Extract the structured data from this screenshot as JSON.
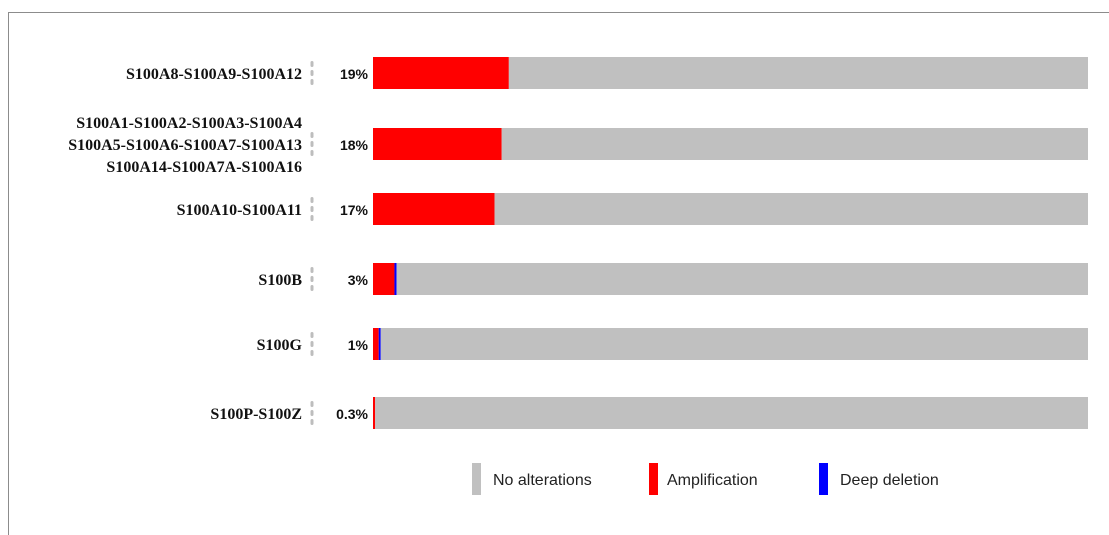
{
  "chart_data": {
    "type": "bar",
    "orientation": "horizontal",
    "stacked": true,
    "categories": [
      [
        "S100A8-S100A9-S100A12"
      ],
      [
        "S100A1-S100A2-S100A3-S100A4",
        "S100A5-S100A6-S100A7-S100A13",
        "S100A14-S100A7A-S100A16"
      ],
      [
        "S100A10-S100A11"
      ],
      [
        "S100B"
      ],
      [
        "S100G"
      ],
      [
        "S100P-S100Z"
      ]
    ],
    "percent_labels": [
      "19%",
      "18%",
      "17%",
      "3%",
      "1%",
      "0.3%"
    ],
    "series": [
      {
        "name": "Amplification",
        "color": "#ff0000",
        "values": [
          19,
          18,
          17,
          3,
          0.8,
          0.3
        ]
      },
      {
        "name": "Deep deletion",
        "color": "#0000ff",
        "values": [
          0,
          0,
          0,
          0.3,
          0.2,
          0
        ]
      },
      {
        "name": "No alterations",
        "color": "#c0c0c0",
        "values": [
          81,
          82,
          83,
          96.7,
          99,
          99.7
        ]
      }
    ],
    "xlim": [
      0,
      100
    ],
    "legend": {
      "position": "bottom",
      "items": [
        {
          "label": "No alterations",
          "color": "#c0c0c0"
        },
        {
          "label": "Amplification",
          "color": "#ff0000"
        },
        {
          "label": "Deep deletion",
          "color": "#0000ff"
        }
      ]
    },
    "grid": false
  }
}
